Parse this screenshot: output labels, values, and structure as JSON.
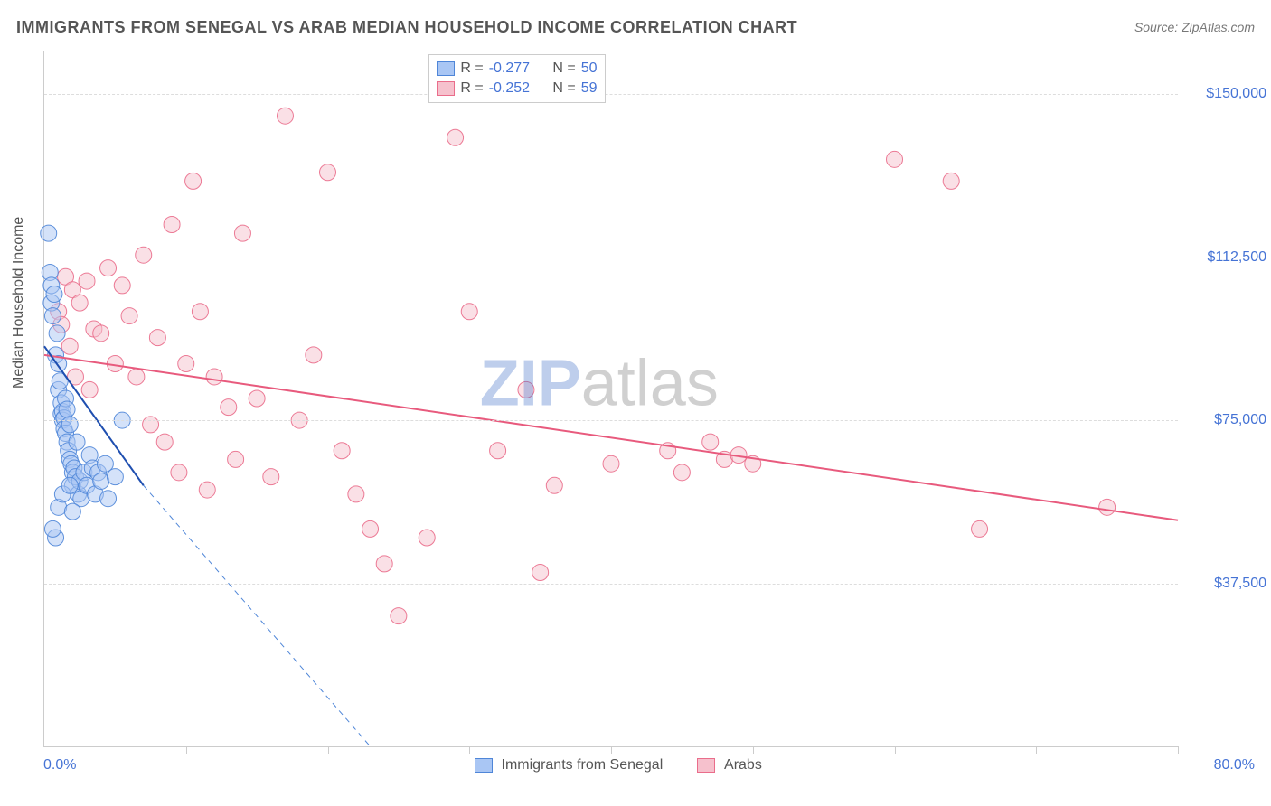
{
  "header": {
    "title": "IMMIGRANTS FROM SENEGAL VS ARAB MEDIAN HOUSEHOLD INCOME CORRELATION CHART",
    "source_prefix": "Source: ",
    "source_link": "ZipAtlas.com"
  },
  "watermark": {
    "z": "ZIP",
    "rest": "atlas"
  },
  "chart": {
    "type": "scatter-with-regression",
    "background_color": "#ffffff",
    "grid_color": "#dddddd",
    "axis_color": "#cccccc",
    "label_color": "#4573d5",
    "text_color": "#555555",
    "label_fontsize": 16,
    "title_fontsize": 18,
    "yaxis_title": "Median Household Income",
    "xlim": [
      0,
      80
    ],
    "ylim": [
      0,
      160000
    ],
    "xtick_positions": [
      10,
      20,
      30,
      40,
      50,
      60,
      70,
      80
    ],
    "xaxis_min_label": "0.0%",
    "xaxis_max_label": "80.0%",
    "ytick_labels": [
      {
        "v": 37500,
        "label": "$37,500"
      },
      {
        "v": 75000,
        "label": "$75,000"
      },
      {
        "v": 112500,
        "label": "$112,500"
      },
      {
        "v": 150000,
        "label": "$150,000"
      }
    ],
    "marker_radius": 9,
    "marker_opacity": 0.5,
    "line_width": 2
  },
  "series": {
    "senegal": {
      "name": "Immigrants from Senegal",
      "fill": "#a9c6f4",
      "stroke": "#4f86d8",
      "line_color": "#1f4fb0",
      "R": "-0.277",
      "N": "50",
      "regression": {
        "x1": 0,
        "y1": 92000,
        "x2": 7,
        "y2": 60000
      },
      "extrapolate": {
        "x1": 7,
        "y1": 60000,
        "x2": 23,
        "y2": 0
      },
      "points": [
        [
          0.3,
          118000
        ],
        [
          0.4,
          109000
        ],
        [
          0.5,
          106000
        ],
        [
          0.5,
          102000
        ],
        [
          0.6,
          99000
        ],
        [
          0.7,
          104000
        ],
        [
          0.8,
          90000
        ],
        [
          0.9,
          95000
        ],
        [
          1.0,
          88000
        ],
        [
          1.0,
          82000
        ],
        [
          1.1,
          84000
        ],
        [
          1.2,
          79000
        ],
        [
          1.2,
          76500
        ],
        [
          1.3,
          77000
        ],
        [
          1.3,
          75000
        ],
        [
          1.4,
          75500
        ],
        [
          1.4,
          73000
        ],
        [
          1.5,
          80000
        ],
        [
          1.5,
          72000
        ],
        [
          1.6,
          77500
        ],
        [
          1.6,
          70000
        ],
        [
          1.7,
          68000
        ],
        [
          1.8,
          66000
        ],
        [
          1.8,
          74000
        ],
        [
          1.9,
          65000
        ],
        [
          2.0,
          63000
        ],
        [
          2.0,
          60000
        ],
        [
          2.1,
          64000
        ],
        [
          2.2,
          62000
        ],
        [
          2.3,
          70000
        ],
        [
          2.4,
          58000
        ],
        [
          2.5,
          61000
        ],
        [
          2.6,
          57000
        ],
        [
          2.8,
          63000
        ],
        [
          3.0,
          60000
        ],
        [
          3.2,
          67000
        ],
        [
          3.4,
          64000
        ],
        [
          3.6,
          58000
        ],
        [
          3.8,
          63000
        ],
        [
          4.0,
          61000
        ],
        [
          4.3,
          65000
        ],
        [
          4.5,
          57000
        ],
        [
          5.0,
          62000
        ],
        [
          5.5,
          75000
        ],
        [
          1.0,
          55000
        ],
        [
          0.8,
          48000
        ],
        [
          0.6,
          50000
        ],
        [
          2.0,
          54000
        ],
        [
          1.3,
          58000
        ],
        [
          1.8,
          60000
        ]
      ]
    },
    "arabs": {
      "name": "Arabs",
      "fill": "#f6c1cd",
      "stroke": "#ea6d8b",
      "line_color": "#e85a7d",
      "R": "-0.252",
      "N": "59",
      "regression": {
        "x1": 0,
        "y1": 90000,
        "x2": 80,
        "y2": 52000
      },
      "points": [
        [
          1.5,
          108000
        ],
        [
          2.0,
          105000
        ],
        [
          2.5,
          102000
        ],
        [
          3.0,
          107000
        ],
        [
          3.5,
          96000
        ],
        [
          4.0,
          95000
        ],
        [
          4.5,
          110000
        ],
        [
          5.0,
          88000
        ],
        [
          5.5,
          106000
        ],
        [
          6.0,
          99000
        ],
        [
          7.0,
          113000
        ],
        [
          8.0,
          94000
        ],
        [
          9.0,
          120000
        ],
        [
          10.0,
          88000
        ],
        [
          10.5,
          130000
        ],
        [
          11.0,
          100000
        ],
        [
          12.0,
          85000
        ],
        [
          13.0,
          78000
        ],
        [
          14.0,
          118000
        ],
        [
          15.0,
          80000
        ],
        [
          16.0,
          62000
        ],
        [
          17.0,
          145000
        ],
        [
          18.0,
          75000
        ],
        [
          19.0,
          90000
        ],
        [
          20.0,
          132000
        ],
        [
          21.0,
          68000
        ],
        [
          22.0,
          58000
        ],
        [
          23.0,
          50000
        ],
        [
          24.0,
          42000
        ],
        [
          25.0,
          30000
        ],
        [
          7.5,
          74000
        ],
        [
          8.5,
          70000
        ],
        [
          9.5,
          63000
        ],
        [
          11.5,
          59000
        ],
        [
          13.5,
          66000
        ],
        [
          27.0,
          48000
        ],
        [
          29.0,
          140000
        ],
        [
          30.0,
          100000
        ],
        [
          32.0,
          68000
        ],
        [
          34.0,
          82000
        ],
        [
          35.0,
          40000
        ],
        [
          36.0,
          60000
        ],
        [
          40.0,
          65000
        ],
        [
          44.0,
          68000
        ],
        [
          45.0,
          63000
        ],
        [
          47.0,
          70000
        ],
        [
          48.0,
          66000
        ],
        [
          49.0,
          67000
        ],
        [
          50.0,
          65000
        ],
        [
          60.0,
          135000
        ],
        [
          64.0,
          130000
        ],
        [
          66.0,
          50000
        ],
        [
          75.0,
          55000
        ],
        [
          2.2,
          85000
        ],
        [
          3.2,
          82000
        ],
        [
          1.0,
          100000
        ],
        [
          1.2,
          97000
        ],
        [
          1.8,
          92000
        ],
        [
          6.5,
          85000
        ]
      ]
    }
  },
  "legend_top": {
    "r_label": "R =",
    "n_label": "N ="
  },
  "legend_bottom": {
    "items": [
      "senegal",
      "arabs"
    ]
  }
}
